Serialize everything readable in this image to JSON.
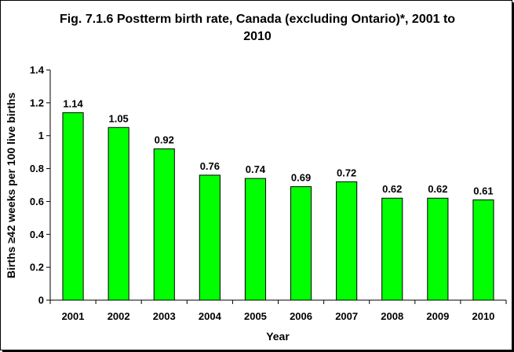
{
  "chart_data": {
    "type": "bar",
    "title_line1": "Fig. 7.1.6 Postterm birth rate, Canada (excluding Ontario)*, 2001 to",
    "title_line2": "2010",
    "xlabel": "Year",
    "ylabel": "Births ≥42 weeks per 100 live births",
    "categories": [
      "2001",
      "2002",
      "2003",
      "2004",
      "2005",
      "2006",
      "2007",
      "2008",
      "2009",
      "2010"
    ],
    "values": [
      1.14,
      1.05,
      0.92,
      0.76,
      0.74,
      0.69,
      0.72,
      0.62,
      0.62,
      0.61
    ],
    "value_labels": [
      "1.14",
      "1.05",
      "0.92",
      "0.76",
      "0.74",
      "0.69",
      "0.72",
      "0.62",
      "0.62",
      "0.61"
    ],
    "ylim": [
      0,
      1.4
    ],
    "yticks": [
      0,
      0.2,
      0.4,
      0.6,
      0.8,
      1,
      1.2,
      1.4
    ],
    "ytick_labels": [
      "0",
      "0.2",
      "0.4",
      "0.6",
      "0.8",
      "1",
      "1.2",
      "1.4"
    ],
    "grid": false,
    "legend": false,
    "colors": {
      "bar_fill": "#00ff00",
      "bar_stroke": "#000000",
      "plot_background": "#ffffff",
      "axis": "#000000"
    }
  }
}
